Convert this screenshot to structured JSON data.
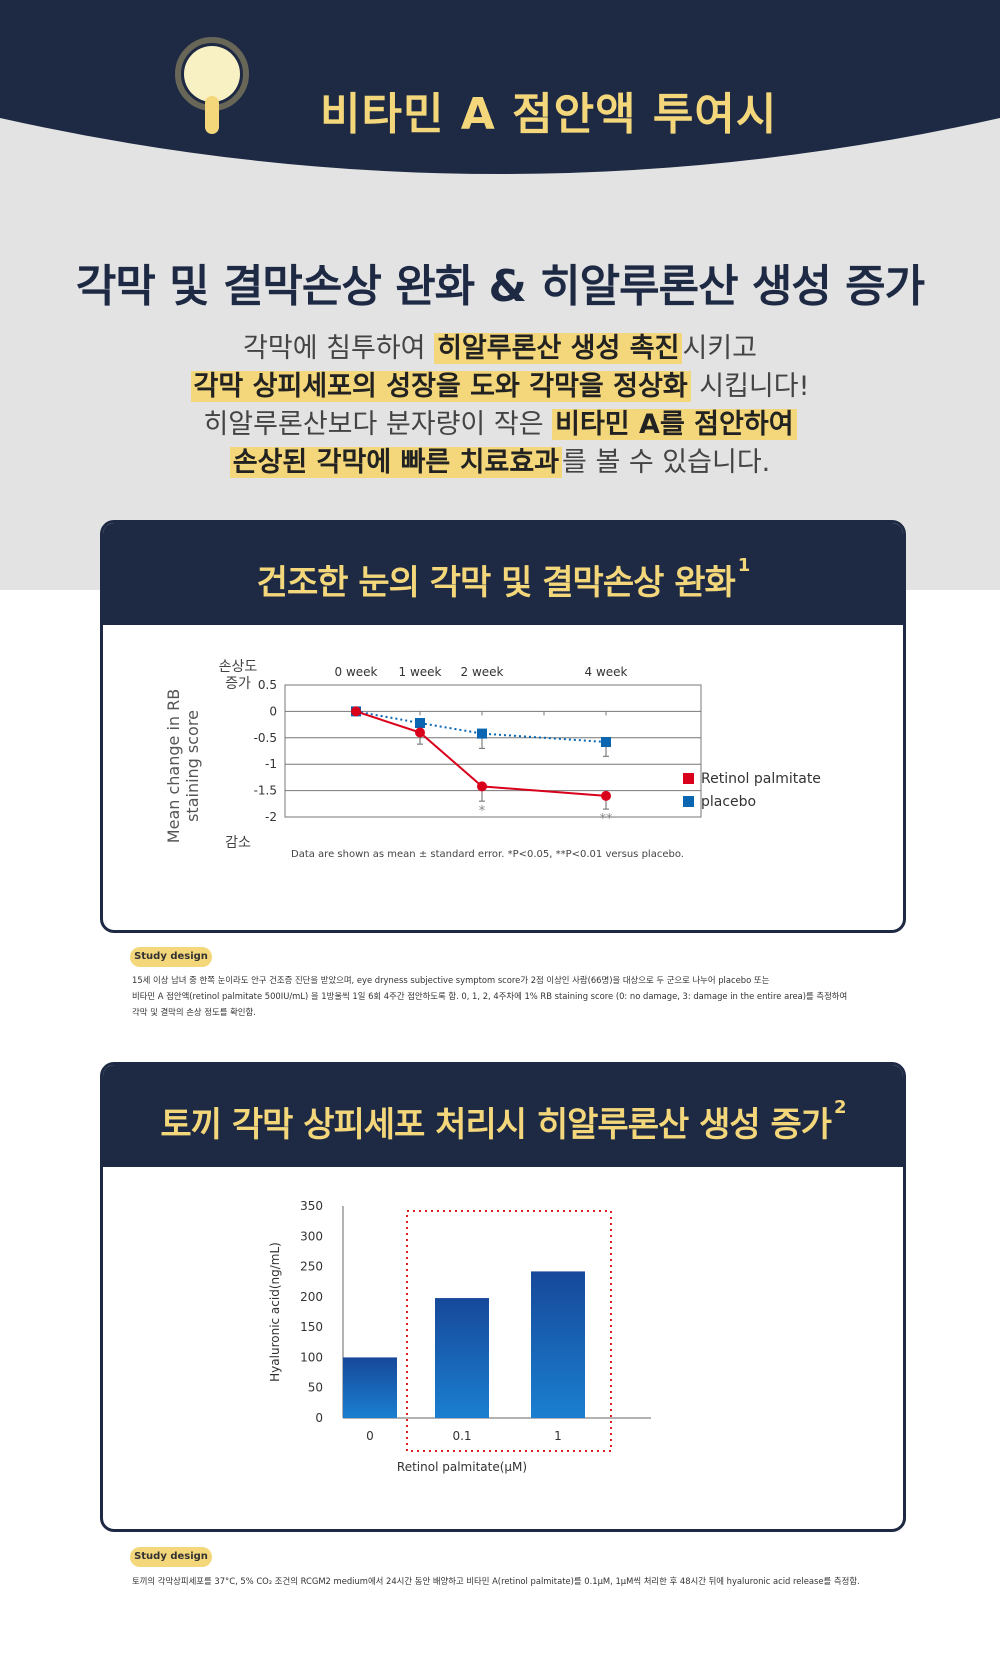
{
  "hero": {
    "title": "비타민 A 점안액 투여시"
  },
  "headline": "각막 및 결막손상 완화 & 히알루론산 생성 증가",
  "description": {
    "line1": {
      "pre": "각막에 침투하여 ",
      "hl": "히알루론산 생성 촉진",
      "post": "시키고"
    },
    "line2": {
      "hl": "각막 상피세포의 성장을 도와 각막을 정상화",
      "post": " 시킵니다!"
    },
    "line3": {
      "pre": "히알루론산보다 분자량이 작은 ",
      "hl": "비타민 A를 점안하여"
    },
    "line4": {
      "hl": "손상된 각막에 빠른 치료효과",
      "post": "를 볼 수 있습니다."
    }
  },
  "colors": {
    "navy": "#1e2a44",
    "yellow": "#f3d77a",
    "red": "#d9001b",
    "blue": "#0a66b0"
  },
  "card1": {
    "title": "건조한 눈의 각막 및 결막손상 완화",
    "sup": "1",
    "note": "Data are shown as mean ± standard error. *P<0.05, **P<0.01 versus placebo.",
    "chart_data": {
      "type": "line",
      "ylabel": "Mean change in RB staining score",
      "ylabel_line1": "Mean change in RB",
      "ylabel_line2": "staining score",
      "y_top_label": "손상도 증가",
      "y_top_label_line1": "손상도",
      "y_top_label_line2": "증가",
      "y_bottom_label": "감소",
      "ylim": [
        -2,
        0.5
      ],
      "yticks": [
        "0.5",
        "0",
        "-0.5",
        "-1",
        "-1.5",
        "-2"
      ],
      "ytick_values": [
        0.5,
        0,
        -0.5,
        -1,
        -1.5,
        -2
      ],
      "x_week_labels": [
        "0 week",
        "1 week",
        "2 week",
        "4 week"
      ],
      "x": [
        0,
        1,
        2,
        4
      ],
      "xlim": [
        0,
        4
      ],
      "grid": true,
      "legend": "right",
      "series": [
        {
          "name": "Retinol palmitate",
          "color": "#d9001b",
          "line": "solid",
          "marker": "circle",
          "values": [
            0,
            -0.4,
            -1.42,
            -1.6
          ],
          "err": [
            0,
            0.22,
            0.28,
            0.25
          ],
          "sig": [
            "",
            "",
            "*",
            "**"
          ]
        },
        {
          "name": "placebo",
          "color": "#0a66b0",
          "line": "dotted",
          "marker": "square",
          "values": [
            0,
            -0.22,
            -0.42,
            -0.58
          ],
          "err": [
            0,
            0,
            0.28,
            0.27
          ]
        }
      ]
    }
  },
  "study1": {
    "badge": "Study design",
    "lines": [
      "15세 이상 남녀 중 한쪽 눈이라도 안구 건조증 진단을 받았으며, eye dryness subjective symptom score가 2점 이상인 사람(66명)을 대상으로 두 군으로 나누어 placebo 또는",
      "비타민 A 점안액(retinol palmitate 500IU/mL) 을 1방울씩 1일 6회 4주간 점안하도록 함. 0, 1, 2, 4주차에 1% RB staining score (0: no damage, 3: damage in the entire area)를 측정하여",
      "각막 및 결막의 손상 정도를 확인함."
    ]
  },
  "card2": {
    "title": "토끼 각막 상피세포 처리시 히알루론산 생성 증가",
    "sup": "2",
    "chart_data": {
      "type": "bar",
      "categories": [
        "0",
        "0.1",
        "1"
      ],
      "values": [
        100,
        198,
        242
      ],
      "ylim": [
        0,
        350
      ],
      "yticks": [
        "350",
        "300",
        "250",
        "200",
        "150",
        "100",
        "50",
        "0"
      ],
      "ytick_values": [
        350,
        300,
        250,
        200,
        150,
        100,
        50,
        0
      ],
      "ylabel": "Hyaluronic acid(ng/mL)",
      "xlabel": "Retinol palmitate(μM)",
      "highlight": "dotted red box around 0.1 and 1"
    }
  },
  "study2": {
    "badge": "Study design",
    "lines": [
      "토끼의 각막상피세포를 37°C, 5% CO₂ 조건의 RCGM2 medium에서 24시간 동안 배양하고 비타민 A(retinol palmitate)를 0.1μM, 1μM씩 처리한 후 48시간 뒤에 hyaluronic acid release를 측정함."
    ]
  }
}
